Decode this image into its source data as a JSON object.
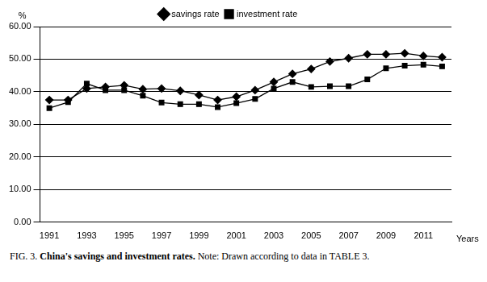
{
  "chart_data": {
    "type": "line",
    "y_label": "%",
    "x_label": "Years",
    "caption": {
      "figure": "FIG. 3.",
      "title": "China's savings and investment rates.",
      "note": "Note: Drawn according to data in TABLE 3."
    },
    "categories": [
      "1991",
      null,
      "1993",
      null,
      "1995",
      null,
      "1997",
      null,
      "1999",
      null,
      "2001",
      null,
      "2003",
      null,
      "2005",
      null,
      "2007",
      null,
      "2009",
      null,
      "2011",
      null
    ],
    "series": [
      {
        "name": "savings rate",
        "color": "#000000",
        "marker": "diamond",
        "line_style": "solid",
        "values": [
          37.5,
          37.5,
          41.0,
          41.5,
          42.0,
          40.8,
          41.0,
          40.3,
          39.0,
          37.5,
          38.5,
          40.5,
          43.0,
          45.5,
          47.0,
          49.3,
          50.3,
          51.5,
          51.5,
          51.8,
          51.0,
          50.6
        ]
      },
      {
        "name": "investment rate",
        "color": "#000000",
        "marker": "square",
        "line_style": "solid",
        "values": [
          35.0,
          36.8,
          42.5,
          40.5,
          40.5,
          38.8,
          36.7,
          36.2,
          36.2,
          35.3,
          36.5,
          37.8,
          41.0,
          43.0,
          41.5,
          41.7,
          41.7,
          43.8,
          47.2,
          48.0,
          48.3,
          47.8
        ]
      }
    ],
    "ylim": [
      0,
      60
    ],
    "yticks": [
      {
        "value": 0,
        "label": "0.00"
      },
      {
        "value": 10,
        "label": "10.00"
      },
      {
        "value": 20,
        "label": "20.00"
      },
      {
        "value": 30,
        "label": "30.00"
      },
      {
        "value": 40,
        "label": "40.00"
      },
      {
        "value": 50,
        "label": "50.00"
      },
      {
        "value": 60,
        "label": "60.00"
      }
    ],
    "grid": true,
    "legend": "top"
  }
}
